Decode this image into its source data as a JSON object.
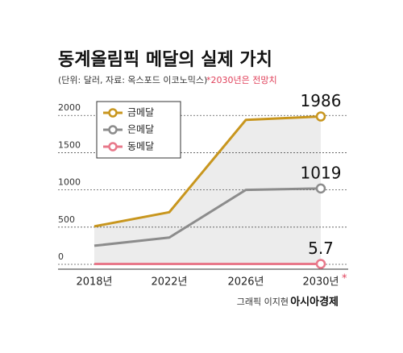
{
  "chart_data": {
    "type": "line",
    "title": "동계올림픽 메달의 실제 가치",
    "subtitle": "(단위: 달러, 자료: 옥스포드 이코노믹스)",
    "note": "*2030년은 전망치",
    "categories": [
      "2018년",
      "2022년",
      "2026년",
      "2030년"
    ],
    "category_mark": "*",
    "series": [
      {
        "name": "금메달",
        "color": "#c8961e",
        "values": [
          510,
          700,
          1940,
          1986
        ],
        "value_labels": [
          null,
          null,
          null,
          "1986"
        ]
      },
      {
        "name": "은메달",
        "color": "#8c8c8c",
        "values": [
          250,
          360,
          1000,
          1019
        ],
        "value_labels": [
          null,
          null,
          null,
          "1019"
        ]
      },
      {
        "name": "동메달",
        "color": "#e8788a",
        "values": [
          5,
          5,
          5,
          5.7
        ],
        "value_labels": [
          null,
          null,
          null,
          "5.7"
        ]
      }
    ],
    "ylim": [
      0,
      2100
    ],
    "yticks": [
      0,
      500,
      1000,
      1500,
      2000
    ],
    "grid": true,
    "credit": "그래픽 이지현",
    "publisher": "아시아경제"
  }
}
